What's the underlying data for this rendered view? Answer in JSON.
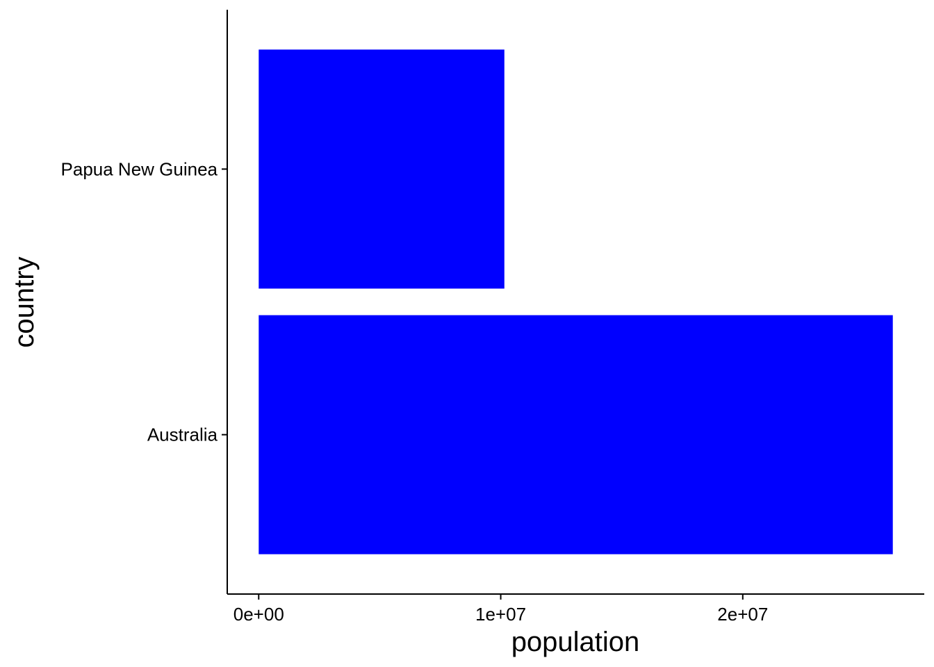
{
  "chart_data": {
    "type": "bar",
    "orientation": "horizontal",
    "categories": [
      "Papua New Guinea",
      "Australia"
    ],
    "values": [
      10150000,
      26200000
    ],
    "xlabel": "population",
    "ylabel": "country",
    "x_ticks": [
      {
        "value": 0,
        "label": "0e+00"
      },
      {
        "value": 10000000,
        "label": "1e+07"
      },
      {
        "value": 20000000,
        "label": "2e+07"
      }
    ],
    "xlim": [
      -1300000,
      27500000
    ],
    "grid": false,
    "legend": "none",
    "bar_color": "#0000ff",
    "axis_color": "#000000"
  }
}
